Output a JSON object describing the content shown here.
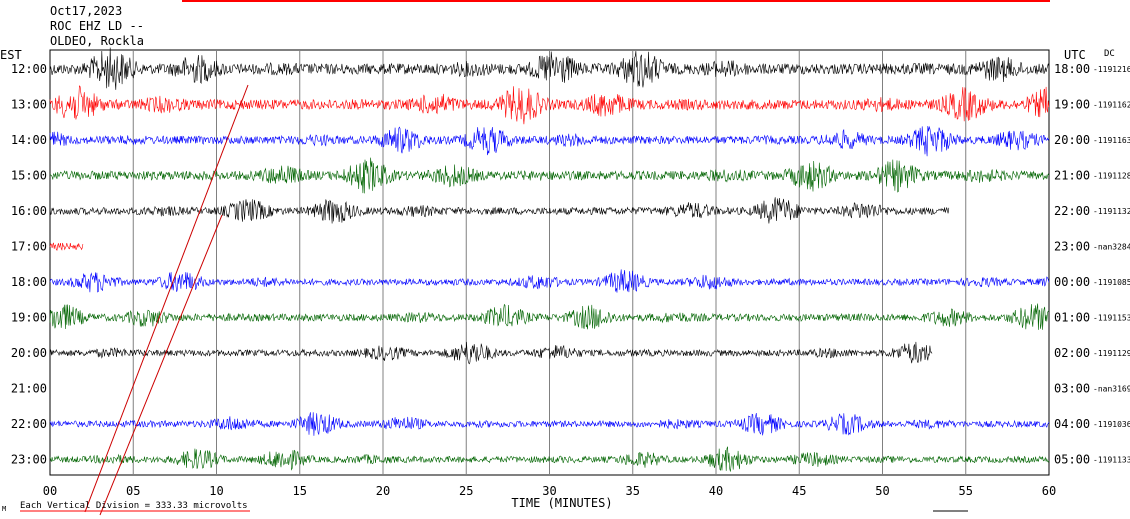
{
  "header": {
    "date": "Oct17,2023",
    "station": "ROC EHZ LD --",
    "location": "OLDEO, Rockla"
  },
  "left_zone": "EST",
  "right_zone": "UTC",
  "dc_label": "DC",
  "footer": {
    "corner_mark": "M",
    "scale_note": "Each Vertical Division =  333.33 microvolts"
  },
  "colors": {
    "black": "#000000",
    "red": "#ff0000",
    "blue": "#0000ff",
    "green": "#006400"
  },
  "chart_data": {
    "type": "line",
    "title": "",
    "xlabel": "TIME (MINUTES)",
    "xlim": [
      0,
      60
    ],
    "xticks": [
      "00",
      "05",
      "10",
      "15",
      "20",
      "25",
      "30",
      "35",
      "40",
      "45",
      "50",
      "55",
      "60"
    ],
    "rows": [
      {
        "est": "12:00",
        "utc": "18:00",
        "dc": "-1191216",
        "color": "black",
        "amp": 12,
        "end_minute": 60
      },
      {
        "est": "13:00",
        "utc": "19:00",
        "dc": "-1191162",
        "color": "red",
        "amp": 11,
        "end_minute": 60
      },
      {
        "est": "14:00",
        "utc": "20:00",
        "dc": "-1191163",
        "color": "blue",
        "amp": 9,
        "end_minute": 60
      },
      {
        "est": "15:00",
        "utc": "21:00",
        "dc": "-1191128",
        "color": "green",
        "amp": 10,
        "end_minute": 60
      },
      {
        "est": "16:00",
        "utc": "22:00",
        "dc": "-1191132",
        "color": "black",
        "amp": 8,
        "end_minute": 54
      },
      {
        "est": "17:00",
        "utc": "23:00",
        "dc": "-nan3284",
        "color": "red",
        "amp": 8,
        "end_minute": 2
      },
      {
        "est": "18:00",
        "utc": "00:00",
        "dc": "-1191085",
        "color": "blue",
        "amp": 7,
        "end_minute": 60
      },
      {
        "est": "19:00",
        "utc": "01:00",
        "dc": "-1191153",
        "color": "green",
        "amp": 8,
        "end_minute": 60
      },
      {
        "est": "20:00",
        "utc": "02:00",
        "dc": "-1191129",
        "color": "black",
        "amp": 7,
        "end_minute": 53
      },
      {
        "est": "21:00",
        "utc": "03:00",
        "dc": "-nan3169",
        "color": "red",
        "amp": 0,
        "end_minute": 0
      },
      {
        "est": "22:00",
        "utc": "04:00",
        "dc": "-1191036",
        "color": "blue",
        "amp": 7,
        "end_minute": 60
      },
      {
        "est": "23:00",
        "utc": "05:00",
        "dc": "-1191133",
        "color": "green",
        "amp": 7,
        "end_minute": 60
      }
    ]
  }
}
